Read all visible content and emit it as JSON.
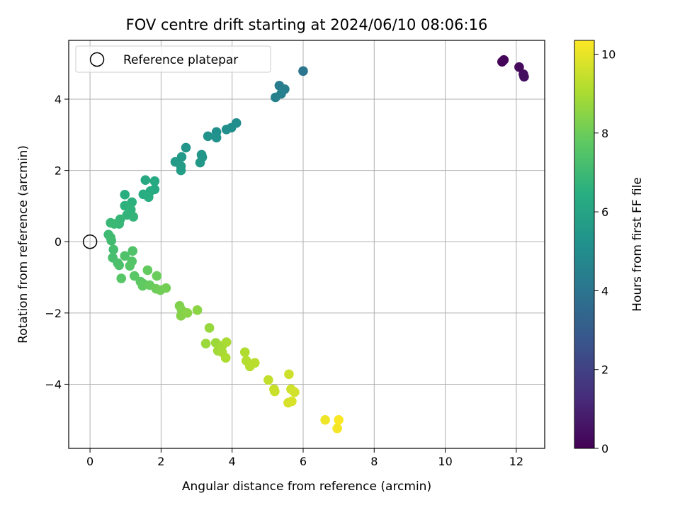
{
  "chart_data": {
    "type": "scatter",
    "title": "FOV centre drift starting at 2024/06/10 08:06:16",
    "xlabel": "Angular distance from reference (arcmin)",
    "ylabel": "Rotation from reference (arcmin)",
    "xlim": [
      -0.6,
      12.8
    ],
    "ylim": [
      -5.8,
      5.65
    ],
    "xticks": [
      0,
      2,
      4,
      6,
      8,
      10,
      12
    ],
    "yticks": [
      -4,
      -2,
      0,
      2,
      4
    ],
    "grid": true,
    "legend": {
      "position": "top-left",
      "entries": [
        "Reference platepar"
      ]
    },
    "reference_point": {
      "x": 0,
      "y": 0
    },
    "colorbar": {
      "label": "Hours from first FF file",
      "colormap": "viridis",
      "range": [
        0,
        10.35
      ],
      "ticks": [
        0,
        2,
        4,
        6,
        8,
        10
      ]
    },
    "points": [
      {
        "x": 11.6,
        "y": 5.05,
        "t": 0.05
      },
      {
        "x": 11.65,
        "y": 5.1,
        "t": 0.1
      },
      {
        "x": 12.08,
        "y": 4.9,
        "t": 0.25
      },
      {
        "x": 12.2,
        "y": 4.7,
        "t": 0.35
      },
      {
        "x": 12.22,
        "y": 4.63,
        "t": 0.4
      },
      {
        "x": 6.0,
        "y": 4.79,
        "t": 4.0
      },
      {
        "x": 5.33,
        "y": 4.38,
        "t": 4.3
      },
      {
        "x": 5.48,
        "y": 4.28,
        "t": 4.4
      },
      {
        "x": 5.38,
        "y": 4.15,
        "t": 4.45
      },
      {
        "x": 5.22,
        "y": 4.05,
        "t": 4.5
      },
      {
        "x": 4.12,
        "y": 3.33,
        "t": 5.0
      },
      {
        "x": 3.98,
        "y": 3.2,
        "t": 5.05
      },
      {
        "x": 3.84,
        "y": 3.15,
        "t": 5.1
      },
      {
        "x": 3.56,
        "y": 3.08,
        "t": 5.15
      },
      {
        "x": 3.56,
        "y": 2.92,
        "t": 5.2
      },
      {
        "x": 3.32,
        "y": 2.96,
        "t": 5.25
      },
      {
        "x": 2.7,
        "y": 2.64,
        "t": 5.35
      },
      {
        "x": 3.14,
        "y": 2.44,
        "t": 5.4
      },
      {
        "x": 3.16,
        "y": 2.37,
        "t": 5.45
      },
      {
        "x": 3.1,
        "y": 2.22,
        "t": 5.5
      },
      {
        "x": 2.58,
        "y": 2.38,
        "t": 5.55
      },
      {
        "x": 2.4,
        "y": 2.24,
        "t": 5.6
      },
      {
        "x": 2.56,
        "y": 2.12,
        "t": 5.65
      },
      {
        "x": 2.56,
        "y": 2.0,
        "t": 5.7
      },
      {
        "x": 1.56,
        "y": 1.73,
        "t": 6.2
      },
      {
        "x": 1.82,
        "y": 1.7,
        "t": 6.25
      },
      {
        "x": 1.82,
        "y": 1.47,
        "t": 6.3
      },
      {
        "x": 1.7,
        "y": 1.42,
        "t": 6.35
      },
      {
        "x": 1.5,
        "y": 1.33,
        "t": 6.4
      },
      {
        "x": 1.65,
        "y": 1.25,
        "t": 6.45
      },
      {
        "x": 0.98,
        "y": 1.32,
        "t": 6.5
      },
      {
        "x": 1.18,
        "y": 1.11,
        "t": 6.55
      },
      {
        "x": 0.98,
        "y": 1.01,
        "t": 6.6
      },
      {
        "x": 1.15,
        "y": 0.9,
        "t": 6.65
      },
      {
        "x": 1.04,
        "y": 0.75,
        "t": 6.7
      },
      {
        "x": 1.22,
        "y": 0.7,
        "t": 6.75
      },
      {
        "x": 0.85,
        "y": 0.63,
        "t": 6.8
      },
      {
        "x": 0.82,
        "y": 0.5,
        "t": 6.85
      },
      {
        "x": 0.58,
        "y": 0.53,
        "t": 6.9
      },
      {
        "x": 0.68,
        "y": 0.5,
        "t": 6.95
      },
      {
        "x": 0.52,
        "y": 0.2,
        "t": 7.0
      },
      {
        "x": 0.58,
        "y": 0.12,
        "t": 7.05
      },
      {
        "x": 0.6,
        "y": 0.03,
        "t": 7.1
      },
      {
        "x": 0.66,
        "y": -0.22,
        "t": 7.2
      },
      {
        "x": 0.64,
        "y": -0.45,
        "t": 7.25
      },
      {
        "x": 0.78,
        "y": -0.6,
        "t": 7.3
      },
      {
        "x": 0.82,
        "y": -0.66,
        "t": 7.35
      },
      {
        "x": 0.98,
        "y": -0.4,
        "t": 7.4
      },
      {
        "x": 1.2,
        "y": -0.26,
        "t": 7.45
      },
      {
        "x": 1.18,
        "y": -0.55,
        "t": 7.5
      },
      {
        "x": 1.12,
        "y": -0.68,
        "t": 7.55
      },
      {
        "x": 0.88,
        "y": -1.03,
        "t": 7.6
      },
      {
        "x": 1.25,
        "y": -0.96,
        "t": 7.65
      },
      {
        "x": 1.42,
        "y": -1.12,
        "t": 7.7
      },
      {
        "x": 1.5,
        "y": -1.18,
        "t": 7.75
      },
      {
        "x": 1.48,
        "y": -1.24,
        "t": 7.8
      },
      {
        "x": 1.62,
        "y": -0.8,
        "t": 7.85
      },
      {
        "x": 1.68,
        "y": -1.22,
        "t": 7.9
      },
      {
        "x": 1.88,
        "y": -0.96,
        "t": 7.95
      },
      {
        "x": 1.86,
        "y": -1.32,
        "t": 8.0
      },
      {
        "x": 1.98,
        "y": -1.36,
        "t": 8.05
      },
      {
        "x": 2.14,
        "y": -1.3,
        "t": 8.1
      },
      {
        "x": 2.52,
        "y": -1.8,
        "t": 8.3
      },
      {
        "x": 2.58,
        "y": -1.92,
        "t": 8.35
      },
      {
        "x": 2.56,
        "y": -2.08,
        "t": 8.4
      },
      {
        "x": 2.74,
        "y": -2.0,
        "t": 8.45
      },
      {
        "x": 3.02,
        "y": -1.92,
        "t": 8.5
      },
      {
        "x": 3.36,
        "y": -2.42,
        "t": 8.7
      },
      {
        "x": 3.26,
        "y": -2.86,
        "t": 8.75
      },
      {
        "x": 3.54,
        "y": -2.84,
        "t": 8.8
      },
      {
        "x": 3.6,
        "y": -3.06,
        "t": 8.85
      },
      {
        "x": 3.72,
        "y": -2.92,
        "t": 8.9
      },
      {
        "x": 3.72,
        "y": -3.1,
        "t": 8.95
      },
      {
        "x": 3.84,
        "y": -2.82,
        "t": 9.0
      },
      {
        "x": 3.82,
        "y": -3.26,
        "t": 9.05
      },
      {
        "x": 4.36,
        "y": -3.1,
        "t": 9.1
      },
      {
        "x": 4.4,
        "y": -3.34,
        "t": 9.15
      },
      {
        "x": 4.5,
        "y": -3.5,
        "t": 9.2
      },
      {
        "x": 4.64,
        "y": -3.4,
        "t": 9.25
      },
      {
        "x": 5.02,
        "y": -3.88,
        "t": 9.4
      },
      {
        "x": 5.18,
        "y": -4.14,
        "t": 9.45
      },
      {
        "x": 5.2,
        "y": -4.2,
        "t": 9.5
      },
      {
        "x": 5.6,
        "y": -3.72,
        "t": 9.55
      },
      {
        "x": 5.66,
        "y": -4.14,
        "t": 9.6
      },
      {
        "x": 5.76,
        "y": -4.22,
        "t": 9.65
      },
      {
        "x": 5.58,
        "y": -4.52,
        "t": 9.7
      },
      {
        "x": 5.68,
        "y": -4.48,
        "t": 9.75
      },
      {
        "x": 6.62,
        "y": -5.0,
        "t": 10.1
      },
      {
        "x": 6.96,
        "y": -5.24,
        "t": 10.2
      },
      {
        "x": 7.0,
        "y": -5.0,
        "t": 10.3
      }
    ]
  }
}
